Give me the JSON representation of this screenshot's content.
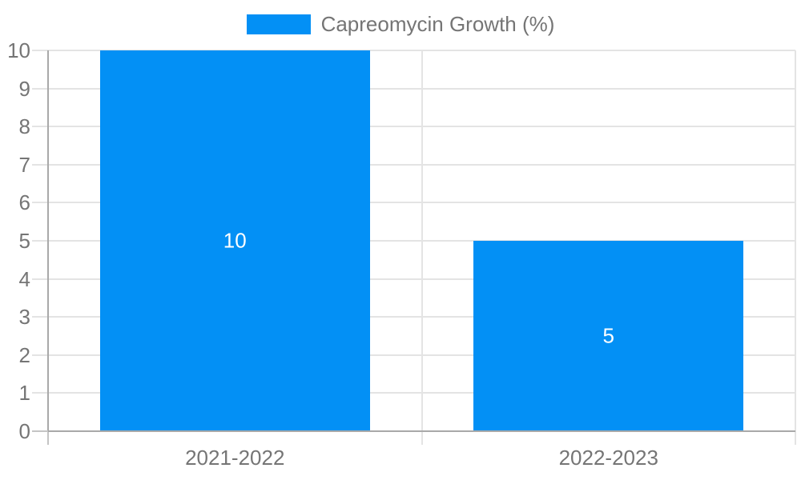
{
  "chart_data": {
    "type": "bar",
    "title": "",
    "categories": [
      "2021-2022",
      "2022-2023"
    ],
    "series": [
      {
        "name": "Capreomycin Growth (%)",
        "values": [
          10,
          5
        ]
      }
    ],
    "value_labels": [
      "10",
      "5"
    ],
    "ylim": [
      0,
      10
    ],
    "yticks": [
      0,
      1,
      2,
      3,
      4,
      5,
      6,
      7,
      8,
      9,
      10
    ],
    "xlabel": "",
    "ylabel": "",
    "legend_position": "top-center",
    "grid": true,
    "value_label_position": "inside-middle",
    "colors": {
      "bar": "#0390f5",
      "gridline": "#e4e4e4",
      "axis": "#a9a9a9",
      "axis_tick": "#c4c4c4",
      "tick_label": "#757575",
      "value_label": "#ffffff",
      "background": "#ffffff"
    }
  }
}
